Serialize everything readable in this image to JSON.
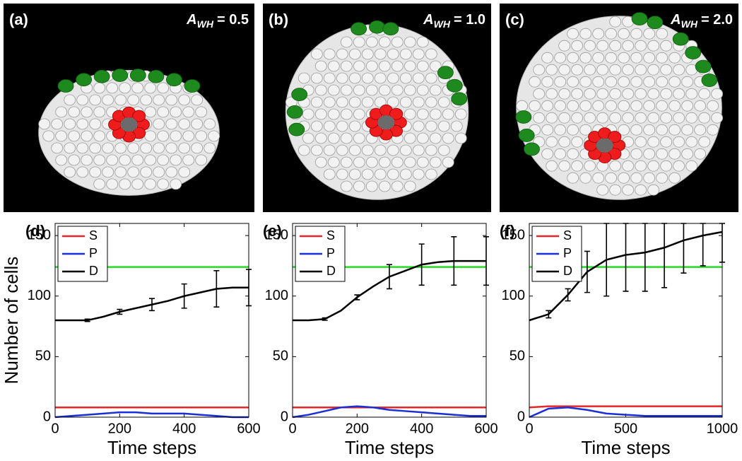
{
  "panels": [
    {
      "label": "(a)",
      "annotation": {
        "symbol": "A",
        "subscript": "WH",
        "text": "= 0.5"
      }
    },
    {
      "label": "(b)",
      "annotation": {
        "symbol": "A",
        "subscript": "WH",
        "text": "= 1.0"
      }
    },
    {
      "label": "(c)",
      "annotation": {
        "symbol": "A",
        "subscript": "WH",
        "text": "= 2.0"
      }
    }
  ],
  "chart_data": [
    {
      "type": "line",
      "panel_label": "(d)",
      "xlabel": "Time steps",
      "ylabel": "Number of cells",
      "x": [
        0,
        50,
        100,
        150,
        200,
        250,
        300,
        350,
        400,
        450,
        500,
        550,
        600
      ],
      "xlim": [
        0,
        600
      ],
      "xticks": [
        0,
        200,
        400,
        600
      ],
      "ylim": [
        0,
        160
      ],
      "yticks": [
        0,
        50,
        100,
        150
      ],
      "reference_line": {
        "value": 124,
        "color": "#22dd22"
      },
      "legend": "upper-left",
      "series": [
        {
          "name": "S",
          "color": "#e8262a",
          "values": [
            8,
            8,
            8,
            8,
            8,
            8,
            8,
            8,
            8,
            8,
            8,
            8,
            8
          ]
        },
        {
          "name": "P",
          "color": "#1a2fd6",
          "values": [
            0,
            1,
            2,
            3,
            4,
            4,
            3,
            3,
            3,
            2,
            1,
            0,
            0
          ]
        },
        {
          "name": "D",
          "color": "#000000",
          "values": [
            80,
            80,
            80,
            83,
            87,
            90,
            93,
            96,
            100,
            103,
            106,
            107,
            107
          ],
          "errors": [
            null,
            null,
            1,
            null,
            2,
            null,
            5,
            null,
            10,
            null,
            15,
            null,
            15
          ]
        }
      ]
    },
    {
      "type": "line",
      "panel_label": "(e)",
      "xlabel": "Time steps",
      "x": [
        0,
        50,
        100,
        150,
        200,
        250,
        300,
        350,
        400,
        450,
        500,
        550,
        600
      ],
      "xlim": [
        0,
        600
      ],
      "xticks": [
        0,
        200,
        400,
        600
      ],
      "ylim": [
        0,
        160
      ],
      "yticks": [
        0,
        50,
        100,
        150
      ],
      "reference_line": {
        "value": 124,
        "color": "#22dd22"
      },
      "legend": "upper-left",
      "series": [
        {
          "name": "S",
          "color": "#e8262a",
          "values": [
            8,
            8,
            8,
            8,
            8,
            8,
            8,
            8,
            8,
            8,
            8,
            8,
            8
          ]
        },
        {
          "name": "P",
          "color": "#1a2fd6",
          "values": [
            0,
            2,
            5,
            8,
            9,
            8,
            6,
            5,
            4,
            3,
            2,
            1,
            1
          ]
        },
        {
          "name": "D",
          "color": "#000000",
          "values": [
            80,
            80,
            81,
            88,
            99,
            108,
            116,
            121,
            126,
            128,
            129,
            129,
            129
          ],
          "errors": [
            null,
            null,
            1,
            null,
            2,
            null,
            10,
            null,
            17,
            null,
            20,
            null,
            20
          ]
        }
      ]
    },
    {
      "type": "line",
      "panel_label": "(f)",
      "xlabel": "Time steps",
      "x": [
        0,
        100,
        200,
        300,
        400,
        500,
        600,
        700,
        800,
        900,
        1000
      ],
      "xlim": [
        0,
        1000
      ],
      "xticks": [
        0,
        500,
        1000
      ],
      "ylim": [
        0,
        160
      ],
      "yticks": [
        0,
        50,
        100,
        150
      ],
      "reference_line": {
        "value": 124,
        "color": "#22dd22"
      },
      "legend": "upper-left",
      "series": [
        {
          "name": "S",
          "color": "#e8262a",
          "values": [
            8,
            9,
            9,
            9,
            9,
            9,
            9,
            9,
            9,
            9,
            9
          ]
        },
        {
          "name": "P",
          "color": "#1a2fd6",
          "values": [
            0,
            7,
            8,
            6,
            3,
            2,
            1,
            1,
            1,
            1,
            1
          ]
        },
        {
          "name": "D",
          "color": "#000000",
          "values": [
            80,
            85,
            101,
            120,
            130,
            134,
            136,
            140,
            146,
            150,
            153
          ],
          "errors": [
            null,
            3,
            5,
            17,
            30,
            30,
            32,
            33,
            27,
            25,
            25
          ]
        }
      ]
    }
  ]
}
